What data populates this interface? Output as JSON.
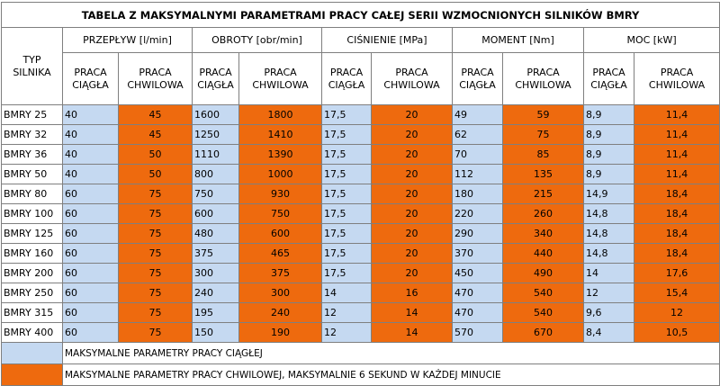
{
  "title": "TABELA Z MAKSYMALNYMI PARAMETRAMI PRACY CAŁEJ SERII WZMOCNIONYCH SILNIKÓW BMRY",
  "header": {
    "type_label": [
      "TYP",
      "SILNIKA"
    ],
    "groups": [
      "PRZEPŁYW [l/min]",
      "OBROTY [obr/min]",
      "CIŚNIENIE [MPa]",
      "MOMENT [Nm]",
      "MOC [kW]"
    ],
    "continuous_label": [
      "PRACA",
      "CIĄGŁA"
    ],
    "intermittent_label": [
      "PRACA",
      "CHWILOWA"
    ]
  },
  "rows": [
    {
      "name": "BMRY 25",
      "values": [
        "40",
        "45",
        "1600",
        "1800",
        "17,5",
        "20",
        "49",
        "59",
        "8,9",
        "11,4"
      ]
    },
    {
      "name": "BMRY 32",
      "values": [
        "40",
        "45",
        "1250",
        "1410",
        "17,5",
        "20",
        "62",
        "75",
        "8,9",
        "11,4"
      ]
    },
    {
      "name": "BMRY 36",
      "values": [
        "40",
        "50",
        "1110",
        "1390",
        "17,5",
        "20",
        "70",
        "85",
        "8,9",
        "11,4"
      ]
    },
    {
      "name": "BMRY 50",
      "values": [
        "40",
        "50",
        "800",
        "1000",
        "17,5",
        "20",
        "112",
        "135",
        "8,9",
        "11,4"
      ]
    },
    {
      "name": "BMRY 80",
      "values": [
        "60",
        "75",
        "750",
        "930",
        "17,5",
        "20",
        "180",
        "215",
        "14,9",
        "18,4"
      ]
    },
    {
      "name": "BMRY 100",
      "values": [
        "60",
        "75",
        "600",
        "750",
        "17,5",
        "20",
        "220",
        "260",
        "14,8",
        "18,4"
      ]
    },
    {
      "name": "BMRY 125",
      "values": [
        "60",
        "75",
        "480",
        "600",
        "17,5",
        "20",
        "290",
        "340",
        "14,8",
        "18,4"
      ]
    },
    {
      "name": "BMRY 160",
      "values": [
        "60",
        "75",
        "375",
        "465",
        "17,5",
        "20",
        "370",
        "440",
        "14,8",
        "18,4"
      ]
    },
    {
      "name": "BMRY 200",
      "values": [
        "60",
        "75",
        "300",
        "375",
        "17,5",
        "20",
        "450",
        "490",
        "14",
        "17,6"
      ]
    },
    {
      "name": "BMRY 250",
      "values": [
        "60",
        "75",
        "240",
        "300",
        "14",
        "16",
        "470",
        "540",
        "12",
        "15,4"
      ]
    },
    {
      "name": "BMRY 315",
      "values": [
        "60",
        "75",
        "195",
        "240",
        "12",
        "14",
        "470",
        "540",
        "9,6",
        "12"
      ]
    },
    {
      "name": "BMRY 400",
      "values": [
        "60",
        "75",
        "150",
        "190",
        "12",
        "14",
        "570",
        "670",
        "8,4",
        "10,5"
      ]
    }
  ],
  "legend": {
    "continuous": "MAKSYMALNE PARAMETRY PRACY CIĄGŁEJ",
    "intermittent": "MAKSYMALNE PARAMETRY PRACY CHWILOWEJ, MAKSYMALNIE 6 SEKUND W KAŻDEJ MINUCIE"
  },
  "colors": {
    "continuous": "#c5d9f1",
    "intermittent": "#ee6a0e",
    "border": "#7f7f7f"
  }
}
